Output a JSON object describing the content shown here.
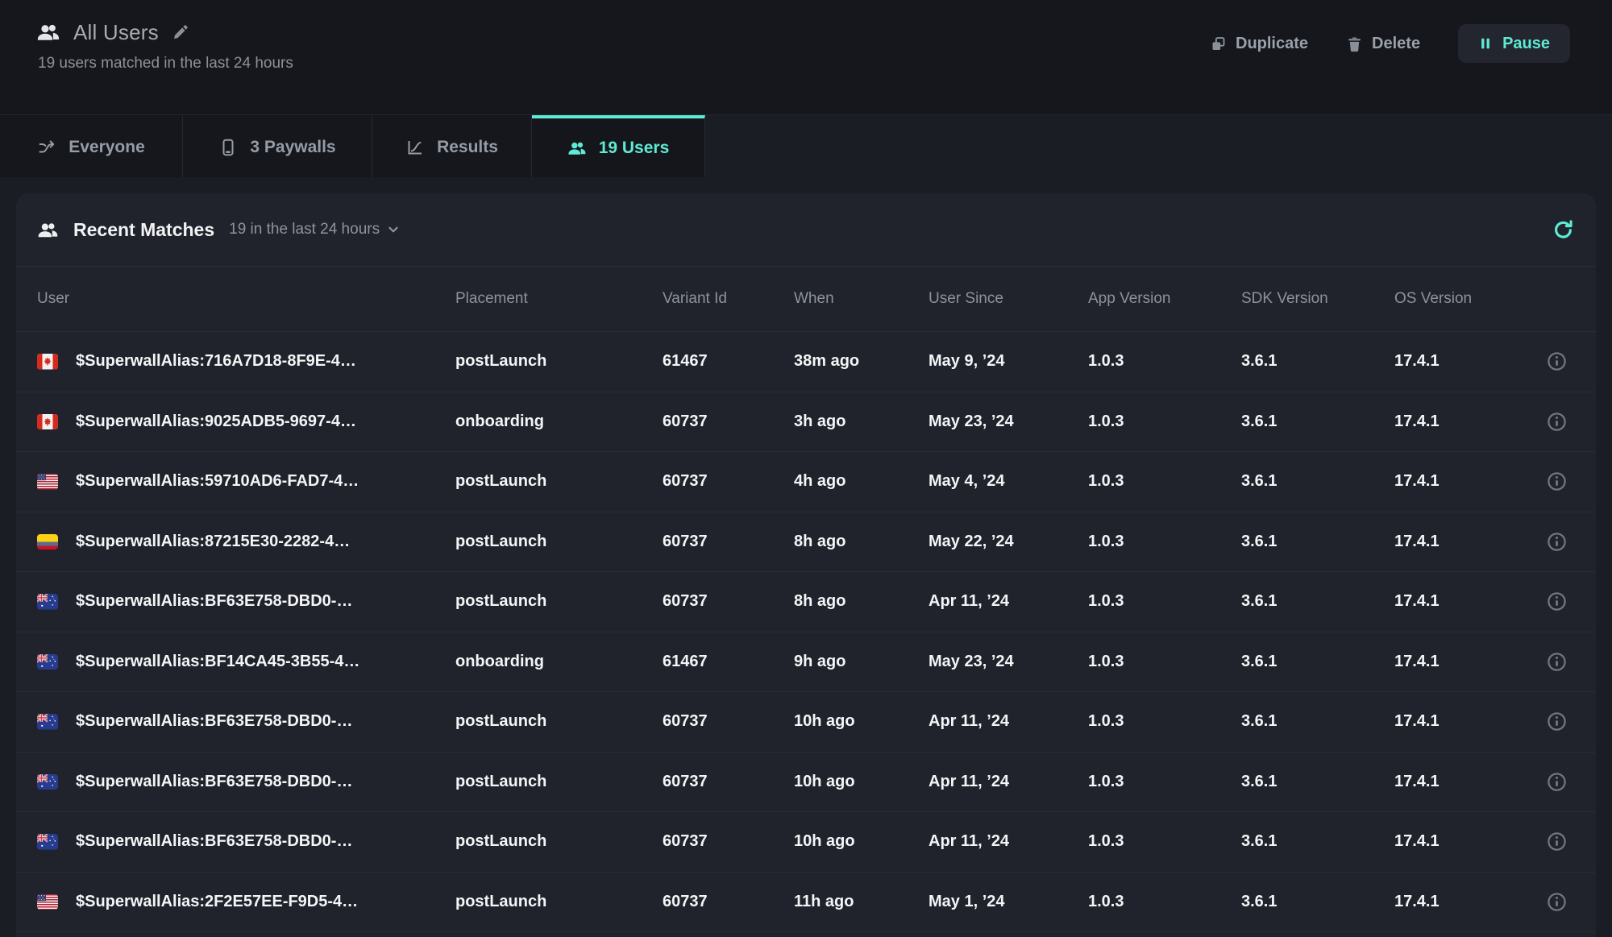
{
  "header": {
    "icon": "users-icon",
    "title": "All Users",
    "subtitle": "19 users matched in the last 24 hours",
    "actions": {
      "duplicate": {
        "label": "Duplicate",
        "icon": "copy-icon"
      },
      "delete": {
        "label": "Delete",
        "icon": "trash-icon"
      },
      "pause": {
        "label": "Pause",
        "icon": "pause-icon"
      }
    }
  },
  "tabs": [
    {
      "label": "Everyone",
      "icon": "split-arrow-icon",
      "active": false
    },
    {
      "label": "3 Paywalls",
      "icon": "phone-icon",
      "active": false
    },
    {
      "label": "Results",
      "icon": "chart-icon",
      "active": false
    },
    {
      "label": "19 Users",
      "icon": "users-icon",
      "active": true
    }
  ],
  "recent_matches": {
    "icon": "users-icon",
    "title": "Recent Matches",
    "filter": "19 in the last 24 hours",
    "refresh_icon": "refresh-icon"
  },
  "table": {
    "columns": [
      "User",
      "Placement",
      "Variant Id",
      "When",
      "User Since",
      "App Version",
      "SDK Version",
      "OS Version"
    ],
    "rows": [
      {
        "country": "CA",
        "alias": "$SuperwallAlias:716A7D18-8F9E-4…",
        "placement": "postLaunch",
        "variant_id": "61467",
        "when": "38m ago",
        "user_since": "May 9, ’24",
        "app_version": "1.0.3",
        "sdk_version": "3.6.1",
        "os_version": "17.4.1"
      },
      {
        "country": "CA",
        "alias": "$SuperwallAlias:9025ADB5-9697-4…",
        "placement": "onboarding",
        "variant_id": "60737",
        "when": "3h ago",
        "user_since": "May 23, ’24",
        "app_version": "1.0.3",
        "sdk_version": "3.6.1",
        "os_version": "17.4.1"
      },
      {
        "country": "US",
        "alias": "$SuperwallAlias:59710AD6-FAD7-4…",
        "placement": "postLaunch",
        "variant_id": "60737",
        "when": "4h ago",
        "user_since": "May 4, ’24",
        "app_version": "1.0.3",
        "sdk_version": "3.6.1",
        "os_version": "17.4.1"
      },
      {
        "country": "CO",
        "alias": "$SuperwallAlias:87215E30-2282-4…",
        "placement": "postLaunch",
        "variant_id": "60737",
        "when": "8h ago",
        "user_since": "May 22, ’24",
        "app_version": "1.0.3",
        "sdk_version": "3.6.1",
        "os_version": "17.4.1"
      },
      {
        "country": "AU",
        "alias": "$SuperwallAlias:BF63E758-DBD0-…",
        "placement": "postLaunch",
        "variant_id": "60737",
        "when": "8h ago",
        "user_since": "Apr 11, ’24",
        "app_version": "1.0.3",
        "sdk_version": "3.6.1",
        "os_version": "17.4.1"
      },
      {
        "country": "AU",
        "alias": "$SuperwallAlias:BF14CA45-3B55-4…",
        "placement": "onboarding",
        "variant_id": "61467",
        "when": "9h ago",
        "user_since": "May 23, ’24",
        "app_version": "1.0.3",
        "sdk_version": "3.6.1",
        "os_version": "17.4.1"
      },
      {
        "country": "AU",
        "alias": "$SuperwallAlias:BF63E758-DBD0-…",
        "placement": "postLaunch",
        "variant_id": "60737",
        "when": "10h ago",
        "user_since": "Apr 11, ’24",
        "app_version": "1.0.3",
        "sdk_version": "3.6.1",
        "os_version": "17.4.1"
      },
      {
        "country": "AU",
        "alias": "$SuperwallAlias:BF63E758-DBD0-…",
        "placement": "postLaunch",
        "variant_id": "60737",
        "when": "10h ago",
        "user_since": "Apr 11, ’24",
        "app_version": "1.0.3",
        "sdk_version": "3.6.1",
        "os_version": "17.4.1"
      },
      {
        "country": "AU",
        "alias": "$SuperwallAlias:BF63E758-DBD0-…",
        "placement": "postLaunch",
        "variant_id": "60737",
        "when": "10h ago",
        "user_since": "Apr 11, ’24",
        "app_version": "1.0.3",
        "sdk_version": "3.6.1",
        "os_version": "17.4.1"
      },
      {
        "country": "US",
        "alias": "$SuperwallAlias:2F2E57EE-F9D5-4…",
        "placement": "postLaunch",
        "variant_id": "60737",
        "when": "11h ago",
        "user_since": "May 1, ’24",
        "app_version": "1.0.3",
        "sdk_version": "3.6.1",
        "os_version": "17.4.1"
      }
    ]
  },
  "colors": {
    "accent": "#5EEAD4"
  }
}
